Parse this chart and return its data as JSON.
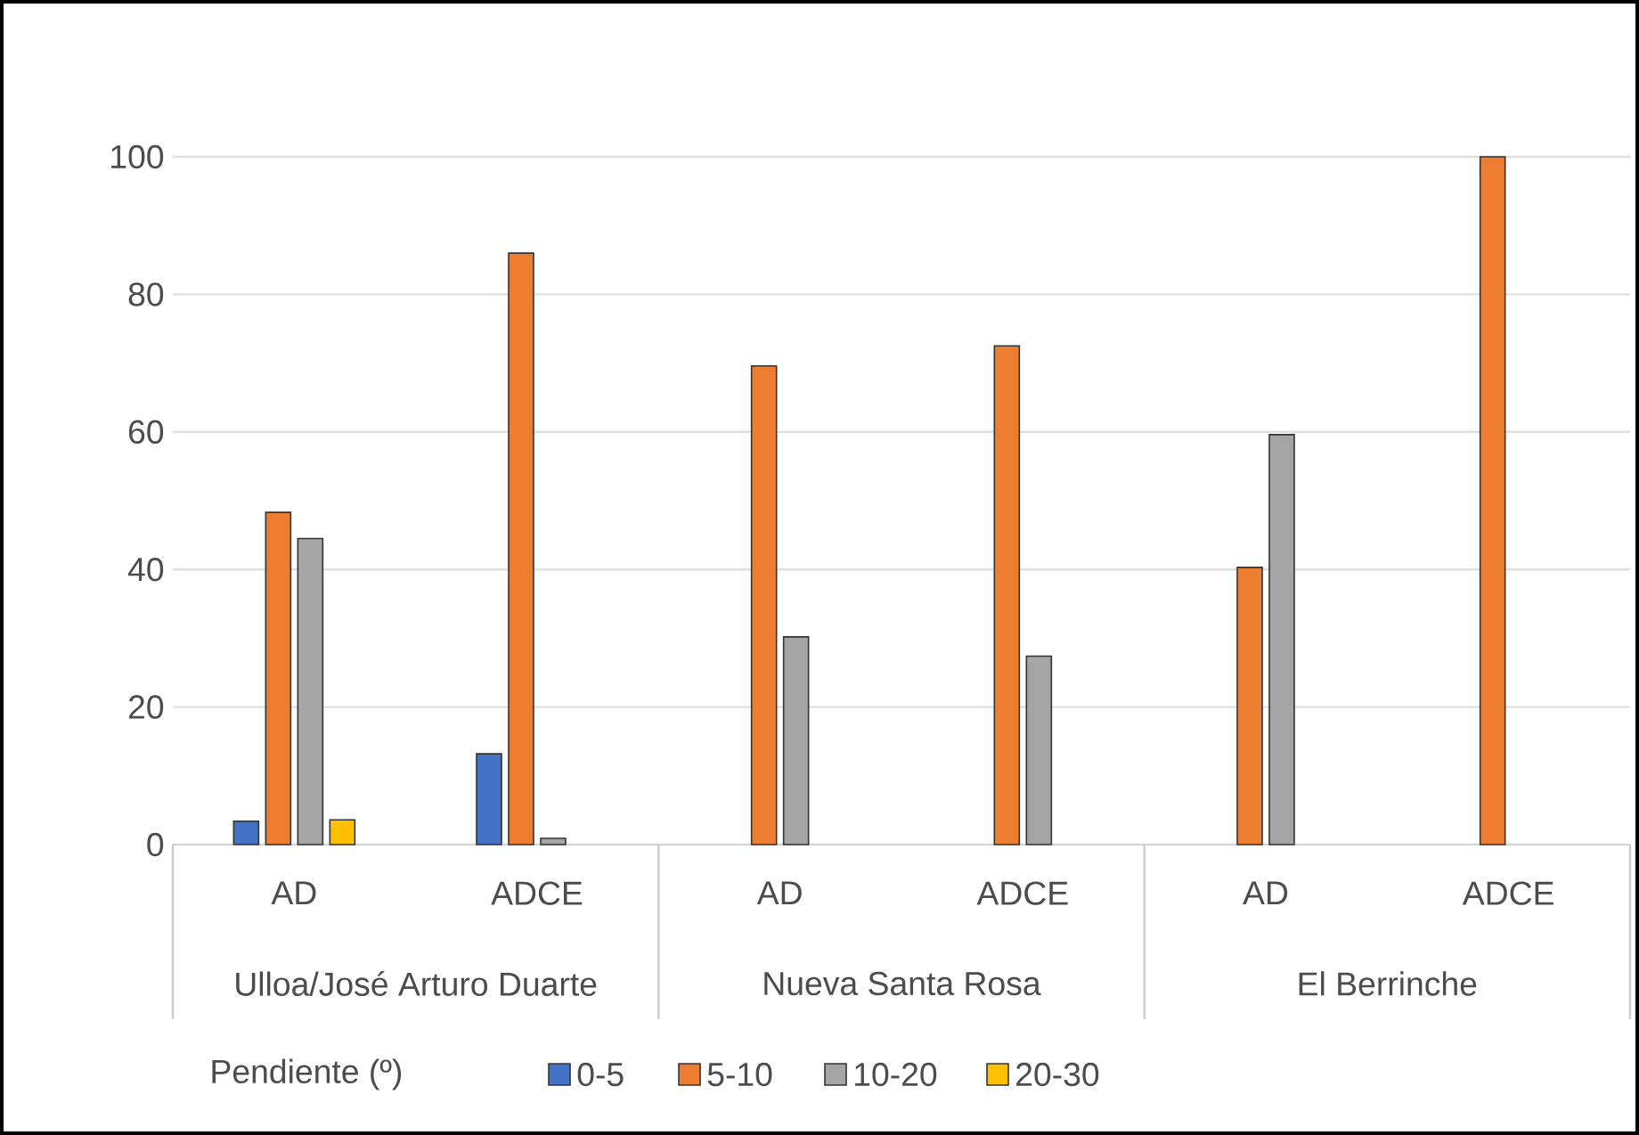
{
  "chart_data": {
    "type": "bar",
    "categories": [
      "AD",
      "ADCE",
      "AD",
      "ADCE",
      "AD",
      "ADCE"
    ],
    "series": [
      {
        "name": "0-5",
        "color": "#4472c4",
        "values": [
          3.4,
          13.2,
          null,
          null,
          null,
          null
        ]
      },
      {
        "name": "5-10",
        "color": "#ed7d31",
        "values": [
          48.3,
          86,
          69.6,
          72.5,
          40.3,
          100
        ]
      },
      {
        "name": "10-20",
        "color": "#a5a5a5",
        "values": [
          44.5,
          0.9,
          30.2,
          27.4,
          59.6,
          null
        ]
      },
      {
        "name": "20-30",
        "color": "#ffc000",
        "values": [
          3.6,
          null,
          null,
          null,
          null,
          null
        ]
      }
    ],
    "annotations": [
      "Ulloa/José Arturo Duarte",
      "Nueva Santa Rosa",
      "El Berrinche"
    ],
    "legend_title": "Pendiente (º)",
    "ylim": [
      0,
      100
    ],
    "yticks": [
      0,
      20,
      40,
      60,
      80,
      100
    ],
    "grid": "y",
    "legend": "bottom"
  }
}
